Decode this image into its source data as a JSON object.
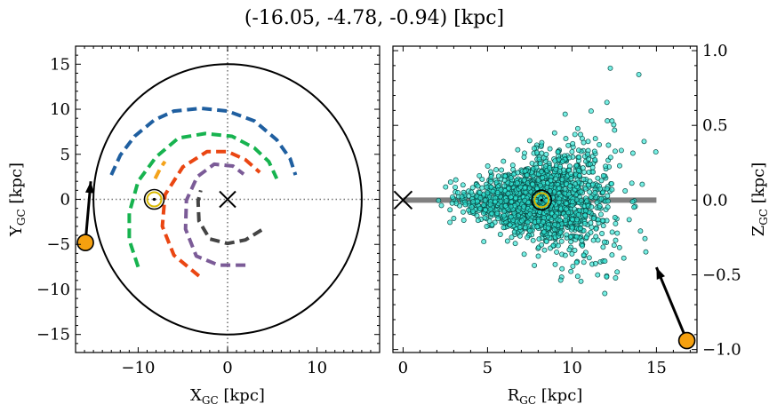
{
  "title": "(-16.05, -4.78, -0.94) [kpc]",
  "chart_data": [
    {
      "type": "line",
      "panel": "left",
      "xlabel": "X",
      "xlabel_sub": "GC",
      "xlabel_unit": " [kpc]",
      "ylabel": "Y",
      "ylabel_sub": "GC",
      "ylabel_unit": " [kpc]",
      "xlim": [
        -17,
        17
      ],
      "ylim": [
        -17,
        17
      ],
      "xticks": [
        -10,
        0,
        10
      ],
      "yticks": [
        -15,
        -10,
        -5,
        0,
        5,
        10,
        15
      ],
      "xtick_labels": [
        "−10",
        "0",
        "10"
      ],
      "ytick_labels": [
        "−15",
        "−10",
        "−5",
        "0",
        "5",
        "10",
        "15"
      ],
      "boundary_circle": {
        "cx": 0,
        "cy": 0,
        "r": 15,
        "color": "#000000"
      },
      "dotted_axes": {
        "color": "#777777"
      },
      "center_marker": {
        "x": 0,
        "y": 0,
        "symbol": "x"
      },
      "sun_marker": {
        "x": -8.2,
        "y": 0
      },
      "spiral_arms": [
        {
          "color": "#1f5fa0",
          "points": [
            [
              -13,
              2.7
            ],
            [
              -12,
              4.9
            ],
            [
              -10.4,
              7
            ],
            [
              -8.2,
              8.8
            ],
            [
              -6,
              9.8
            ],
            [
              -3,
              10.1
            ],
            [
              0,
              9.8
            ],
            [
              3,
              8.7
            ],
            [
              5.5,
              6.6
            ],
            [
              7,
              4.5
            ],
            [
              7.6,
              2.7
            ]
          ]
        },
        {
          "color": "#17b34f",
          "points": [
            [
              -10,
              -7.5
            ],
            [
              -11,
              -4.5
            ],
            [
              -11,
              -1.5
            ],
            [
              -10,
              2
            ],
            [
              -8,
              4.7
            ],
            [
              -5.5,
              6.8
            ],
            [
              -2.5,
              7.3
            ],
            [
              0.5,
              7
            ],
            [
              3,
              5.7
            ],
            [
              4.6,
              4.2
            ],
            [
              5.5,
              2.3
            ]
          ]
        },
        {
          "color": "#ea4612",
          "points": [
            [
              -3.2,
              -8.5
            ],
            [
              -6,
              -6.2
            ],
            [
              -7.3,
              -3
            ],
            [
              -7,
              0.5
            ],
            [
              -5,
              3.6
            ],
            [
              -2.3,
              5.3
            ],
            [
              0,
              5.3
            ],
            [
              2,
              4.4
            ],
            [
              3.6,
              3
            ]
          ]
        },
        {
          "color": "#7b5b97",
          "points": [
            [
              2,
              -7.3
            ],
            [
              -1,
              -7.3
            ],
            [
              -3.5,
              -6.3
            ],
            [
              -4.7,
              -3.3
            ],
            [
              -4.6,
              -0.1
            ],
            [
              -3.4,
              2.5
            ],
            [
              -1.5,
              3.9
            ],
            [
              0.6,
              3.7
            ],
            [
              1.8,
              2.8
            ]
          ]
        },
        {
          "color": "#444444",
          "points": [
            [
              3.8,
              -3.4
            ],
            [
              2,
              -4.5
            ],
            [
              0,
              -4.9
            ],
            [
              -2,
              -4.4
            ],
            [
              -3.2,
              -2.4
            ],
            [
              -3.3,
              -0.2
            ],
            [
              -3,
              1
            ]
          ]
        },
        {
          "color": "#f4a31b",
          "points": [
            [
              -8.1,
              2.3
            ],
            [
              -7.5,
              3.5
            ],
            [
              -7,
              4.2
            ]
          ]
        }
      ],
      "orbit_marker": {
        "x": -15.9,
        "y": -4.8,
        "color": "#f5a00f"
      },
      "arrow": {
        "from": [
          -15.9,
          -4.8
        ],
        "to": [
          -15.3,
          2
        ]
      }
    },
    {
      "type": "scatter",
      "panel": "right",
      "xlabel": "R",
      "xlabel_sub": "GC",
      "xlabel_unit": " [kpc]",
      "ylabel": "Z",
      "ylabel_sub": "GC",
      "ylabel_unit": " [kpc]",
      "xlim": [
        -0.6,
        17.4
      ],
      "ylim": [
        -1.02,
        1.03
      ],
      "xticks": [
        0,
        5,
        10,
        15
      ],
      "yticks": [
        -1.0,
        -0.5,
        0.0,
        0.5,
        1.0
      ],
      "xtick_labels": [
        "0",
        "5",
        "10",
        "15"
      ],
      "ytick_labels": [
        "−1.0",
        "−0.5",
        "0.0",
        "0.5",
        "1.0"
      ],
      "point_color": "#2ee6d6",
      "point_count": 1800,
      "disk_line": {
        "x": [
          0,
          15
        ],
        "y": 0,
        "color": "#808080"
      },
      "center_marker": {
        "x": 0,
        "y": 0,
        "symbol": "x"
      },
      "sun_marker": {
        "x": 8.2,
        "y": 0
      },
      "orbit_marker": {
        "x": 16.8,
        "y": -0.94,
        "color": "#f5a00f"
      },
      "arrow": {
        "from": [
          16.8,
          -0.94
        ],
        "to": [
          15,
          -0.45
        ]
      }
    }
  ]
}
